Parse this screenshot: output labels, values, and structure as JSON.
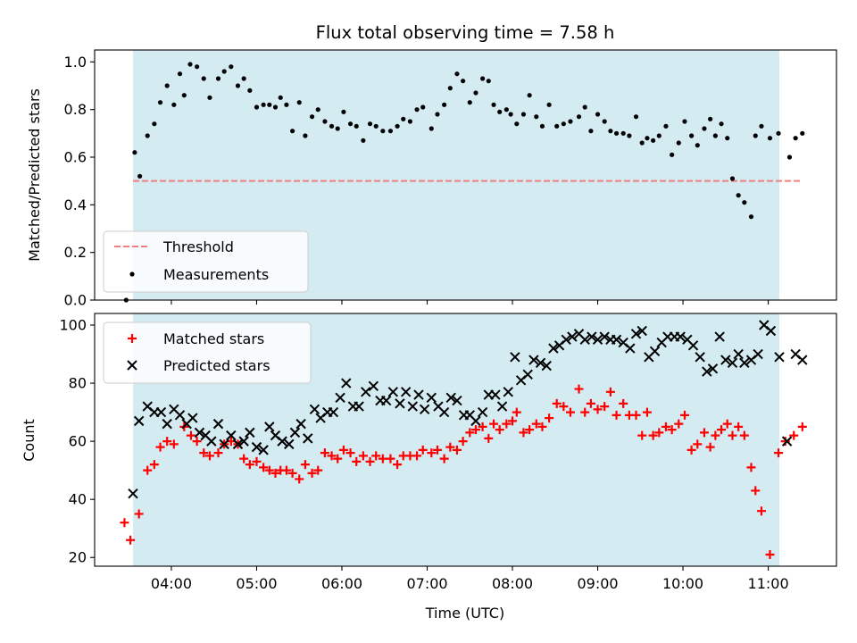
{
  "chart_data": {
    "type": "scatter",
    "title": "Flux total observing time = 7.58 h",
    "xlabel": "Time (UTC)",
    "x_unit": "hours UTC",
    "xlim": [
      3.1,
      11.8
    ],
    "xticks": [
      4,
      5,
      6,
      7,
      8,
      9,
      10,
      11
    ],
    "xtick_labels": [
      "04:00",
      "05:00",
      "06:00",
      "07:00",
      "08:00",
      "09:00",
      "10:00",
      "11:00"
    ],
    "observing_window": {
      "start": 3.55,
      "end": 11.13,
      "color": "#add8e6"
    },
    "panels": [
      {
        "name": "ratio",
        "ylabel": "Matched/Predicted stars",
        "ylim": [
          0,
          1.05
        ],
        "yticks": [
          0.0,
          0.2,
          0.4,
          0.6,
          0.8,
          1.0
        ],
        "ytick_labels": [
          "0.0",
          "0.2",
          "0.4",
          "0.6",
          "0.8",
          "1.0"
        ],
        "legend": "lower-left",
        "threshold": {
          "name": "Threshold",
          "value": 0.5,
          "x_range": [
            3.55,
            11.4
          ],
          "color": "#f08080",
          "style": "dashed"
        },
        "series": [
          {
            "name": "Measurements",
            "marker": "dot",
            "color": "#000000",
            "x": [
              3.47,
              3.57,
              3.63,
              3.72,
              3.8,
              3.87,
              3.95,
              4.03,
              4.1,
              4.15,
              4.22,
              4.3,
              4.38,
              4.45,
              4.55,
              4.62,
              4.7,
              4.78,
              4.85,
              4.92,
              5.0,
              5.08,
              5.15,
              5.22,
              5.28,
              5.35,
              5.42,
              5.5,
              5.57,
              5.65,
              5.72,
              5.8,
              5.88,
              5.95,
              6.02,
              6.1,
              6.17,
              6.25,
              6.33,
              6.4,
              6.48,
              6.57,
              6.65,
              6.72,
              6.8,
              6.88,
              6.95,
              7.05,
              7.12,
              7.2,
              7.27,
              7.35,
              7.42,
              7.5,
              7.57,
              7.65,
              7.72,
              7.78,
              7.85,
              7.93,
              7.98,
              8.05,
              8.13,
              8.2,
              8.28,
              8.35,
              8.43,
              8.52,
              8.6,
              8.68,
              8.78,
              8.85,
              8.92,
              9.0,
              9.08,
              9.15,
              9.22,
              9.3,
              9.37,
              9.45,
              9.52,
              9.58,
              9.65,
              9.72,
              9.8,
              9.87,
              9.95,
              10.02,
              10.1,
              10.17,
              10.25,
              10.32,
              10.38,
              10.45,
              10.52,
              10.58,
              10.65,
              10.72,
              10.8,
              10.85,
              10.92,
              11.02,
              11.12,
              11.25,
              11.32,
              11.4
            ],
            "y": [
              0.0,
              0.62,
              0.52,
              0.69,
              0.74,
              0.83,
              0.9,
              0.82,
              0.95,
              0.86,
              0.99,
              0.98,
              0.93,
              0.85,
              0.93,
              0.96,
              0.98,
              0.9,
              0.93,
              0.88,
              0.81,
              0.82,
              0.82,
              0.81,
              0.85,
              0.82,
              0.71,
              0.83,
              0.69,
              0.77,
              0.8,
              0.75,
              0.73,
              0.72,
              0.79,
              0.74,
              0.73,
              0.67,
              0.74,
              0.73,
              0.71,
              0.71,
              0.73,
              0.76,
              0.75,
              0.8,
              0.81,
              0.72,
              0.78,
              0.82,
              0.89,
              0.95,
              0.92,
              0.83,
              0.87,
              0.93,
              0.92,
              0.82,
              0.79,
              0.8,
              0.78,
              0.74,
              0.78,
              0.86,
              0.77,
              0.73,
              0.82,
              0.73,
              0.74,
              0.75,
              0.77,
              0.81,
              0.71,
              0.78,
              0.75,
              0.71,
              0.7,
              0.7,
              0.69,
              0.77,
              0.66,
              0.68,
              0.67,
              0.69,
              0.73,
              0.61,
              0.66,
              0.75,
              0.69,
              0.65,
              0.72,
              0.76,
              0.69,
              0.74,
              0.68,
              0.51,
              0.44,
              0.41,
              0.35,
              0.69,
              0.73,
              0.68,
              0.7,
              0.6,
              0.68,
              0.7
            ]
          }
        ]
      },
      {
        "name": "counts",
        "ylabel": "Count",
        "ylim": [
          17,
          104
        ],
        "yticks": [
          20,
          40,
          60,
          80,
          100
        ],
        "ytick_labels": [
          "20",
          "40",
          "60",
          "80",
          "100"
        ],
        "legend": "top-left",
        "series": [
          {
            "name": "Matched stars",
            "marker": "plus",
            "color": "#ff0000",
            "x": [
              3.45,
              3.52,
              3.62,
              3.72,
              3.8,
              3.87,
              3.95,
              4.03,
              4.15,
              4.23,
              4.3,
              4.38,
              4.45,
              4.55,
              4.62,
              4.7,
              4.78,
              4.85,
              4.92,
              5.0,
              5.08,
              5.15,
              5.22,
              5.28,
              5.35,
              5.42,
              5.5,
              5.57,
              5.65,
              5.72,
              5.8,
              5.88,
              5.95,
              6.02,
              6.1,
              6.17,
              6.25,
              6.33,
              6.4,
              6.48,
              6.57,
              6.65,
              6.72,
              6.8,
              6.88,
              6.95,
              7.05,
              7.12,
              7.2,
              7.27,
              7.35,
              7.42,
              7.5,
              7.57,
              7.65,
              7.72,
              7.78,
              7.85,
              7.93,
              8.0,
              8.05,
              8.13,
              8.2,
              8.28,
              8.35,
              8.43,
              8.52,
              8.6,
              8.68,
              8.78,
              8.85,
              8.92,
              9.0,
              9.08,
              9.15,
              9.22,
              9.3,
              9.37,
              9.45,
              9.52,
              9.58,
              9.65,
              9.72,
              9.8,
              9.87,
              9.95,
              10.02,
              10.1,
              10.17,
              10.25,
              10.32,
              10.38,
              10.45,
              10.52,
              10.58,
              10.65,
              10.72,
              10.8,
              10.85,
              10.92,
              11.02,
              11.12,
              11.2,
              11.3,
              11.4
            ],
            "y": [
              32,
              26,
              35,
              50,
              52,
              58,
              60,
              59,
              65,
              62,
              60,
              56,
              55,
              56,
              59,
              60,
              59,
              54,
              52,
              53,
              51,
              50,
              49,
              50,
              50,
              49,
              47,
              52,
              49,
              50,
              56,
              55,
              54,
              57,
              56,
              53,
              55,
              53,
              55,
              54,
              54,
              52,
              55,
              55,
              55,
              57,
              56,
              57,
              54,
              58,
              57,
              60,
              63,
              64,
              65,
              61,
              66,
              64,
              66,
              67,
              70,
              63,
              64,
              66,
              65,
              68,
              73,
              72,
              70,
              78,
              70,
              73,
              71,
              72,
              77,
              69,
              73,
              69,
              69,
              62,
              70,
              62,
              63,
              65,
              64,
              66,
              69,
              57,
              59,
              63,
              58,
              62,
              64,
              66,
              62,
              65,
              62,
              51,
              43,
              36,
              21,
              56,
              60,
              62,
              65
            ]
          },
          {
            "name": "Predicted stars",
            "marker": "x",
            "color": "#000000",
            "x": [
              3.55,
              3.62,
              3.72,
              3.8,
              3.88,
              3.95,
              4.03,
              4.1,
              4.18,
              4.25,
              4.33,
              4.4,
              4.47,
              4.55,
              4.62,
              4.7,
              4.78,
              4.85,
              4.92,
              5.0,
              5.08,
              5.15,
              5.22,
              5.3,
              5.38,
              5.45,
              5.52,
              5.6,
              5.68,
              5.75,
              5.83,
              5.9,
              5.98,
              6.05,
              6.13,
              6.2,
              6.28,
              6.37,
              6.45,
              6.52,
              6.6,
              6.68,
              6.75,
              6.83,
              6.9,
              6.97,
              7.05,
              7.13,
              7.2,
              7.28,
              7.35,
              7.43,
              7.5,
              7.57,
              7.65,
              7.72,
              7.8,
              7.88,
              7.95,
              8.03,
              8.1,
              8.18,
              8.25,
              8.33,
              8.4,
              8.48,
              8.55,
              8.63,
              8.7,
              8.78,
              8.85,
              8.93,
              9.0,
              9.08,
              9.15,
              9.22,
              9.3,
              9.38,
              9.45,
              9.52,
              9.6,
              9.67,
              9.75,
              9.82,
              9.9,
              9.97,
              10.05,
              10.12,
              10.2,
              10.28,
              10.35,
              10.43,
              10.5,
              10.58,
              10.65,
              10.72,
              10.8,
              10.88,
              10.95,
              11.03,
              11.13,
              11.22,
              11.32,
              11.4
            ],
            "y": [
              42,
              67,
              72,
              70,
              70,
              66,
              71,
              69,
              66,
              68,
              63,
              62,
              60,
              66,
              59,
              62,
              59,
              60,
              63,
              58,
              57,
              65,
              62,
              60,
              59,
              63,
              66,
              61,
              71,
              68,
              70,
              70,
              75,
              80,
              72,
              72,
              77,
              79,
              74,
              74,
              77,
              73,
              77,
              72,
              76,
              71,
              75,
              72,
              70,
              75,
              74,
              69,
              69,
              67,
              70,
              76,
              76,
              72,
              77,
              89,
              81,
              83,
              88,
              87,
              86,
              92,
              93,
              95,
              96,
              97,
              95,
              96,
              95,
              96,
              95,
              95,
              94,
              92,
              97,
              98,
              89,
              91,
              94,
              96,
              96,
              96,
              95,
              93,
              89,
              84,
              85,
              96,
              88,
              87,
              90,
              87,
              88,
              90,
              100,
              98,
              89,
              60,
              90,
              88
            ]
          }
        ]
      }
    ]
  }
}
